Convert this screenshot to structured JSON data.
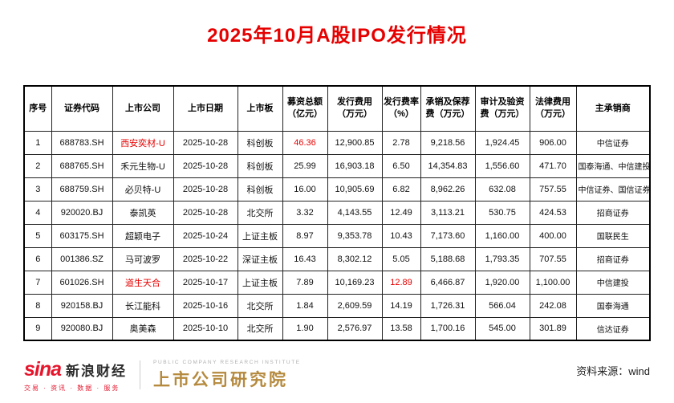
{
  "title": "2025年10月A股IPO发行情况",
  "chart_data": {
    "type": "table",
    "title": "2025年10月A股IPO发行情况",
    "columns": [
      "序号",
      "证券代码",
      "上市公司",
      "上市日期",
      "上市板",
      "募资总额\n（亿元）",
      "发行费用\n（万元）",
      "发行费率\n（%）",
      "承销及保荐\n费（万元）",
      "审计及验资\n费（万元）",
      "法律费用\n（万元）",
      "主承销商"
    ],
    "rows": [
      {
        "cells": [
          "1",
          "688783.SH",
          "西安奕材-U",
          "2025-10-28",
          "科创板",
          "46.36",
          "12,900.85",
          "2.78",
          "9,218.56",
          "1,924.45",
          "906.00",
          "中信证券"
        ],
        "red_cells": [
          2,
          5
        ]
      },
      {
        "cells": [
          "2",
          "688765.SH",
          "禾元生物-U",
          "2025-10-28",
          "科创板",
          "25.99",
          "16,903.18",
          "6.50",
          "14,354.83",
          "1,556.60",
          "471.70",
          "国泰海通、中信建投"
        ],
        "red_cells": []
      },
      {
        "cells": [
          "3",
          "688759.SH",
          "必贝特-U",
          "2025-10-28",
          "科创板",
          "16.00",
          "10,905.69",
          "6.82",
          "8,962.26",
          "632.08",
          "757.55",
          "中信证券、国信证券"
        ],
        "red_cells": []
      },
      {
        "cells": [
          "4",
          "920020.BJ",
          "泰凯英",
          "2025-10-28",
          "北交所",
          "3.32",
          "4,143.55",
          "12.49",
          "3,113.21",
          "530.75",
          "424.53",
          "招商证券"
        ],
        "red_cells": []
      },
      {
        "cells": [
          "5",
          "603175.SH",
          "超颖电子",
          "2025-10-24",
          "上证主板",
          "8.97",
          "9,353.78",
          "10.43",
          "7,173.60",
          "1,160.00",
          "400.00",
          "国联民生"
        ],
        "red_cells": []
      },
      {
        "cells": [
          "6",
          "001386.SZ",
          "马可波罗",
          "2025-10-22",
          "深证主板",
          "16.43",
          "8,302.12",
          "5.05",
          "5,188.68",
          "1,793.35",
          "707.55",
          "招商证券"
        ],
        "red_cells": []
      },
      {
        "cells": [
          "7",
          "601026.SH",
          "道生天合",
          "2025-10-17",
          "上证主板",
          "7.89",
          "10,169.23",
          "12.89",
          "6,466.87",
          "1,920.00",
          "1,100.00",
          "中信建投"
        ],
        "red_cells": [
          2,
          7
        ]
      },
      {
        "cells": [
          "8",
          "920158.BJ",
          "长江能科",
          "2025-10-16",
          "北交所",
          "1.84",
          "2,609.59",
          "14.19",
          "1,726.31",
          "566.04",
          "242.08",
          "国泰海通"
        ],
        "red_cells": []
      },
      {
        "cells": [
          "9",
          "920080.BJ",
          "奥美森",
          "2025-10-10",
          "北交所",
          "1.90",
          "2,576.97",
          "13.58",
          "1,700.16",
          "545.00",
          "301.89",
          "信达证券"
        ],
        "red_cells": []
      }
    ]
  },
  "footer": {
    "sina_logo_text": "sina",
    "sina_brand": "新浪财经",
    "sina_tagline": "交易 · 资讯 · 数据 · 服务",
    "institute_en": "PUBLIC COMPANY RESEARCH INSTITUTE",
    "institute_cn": "上市公司研究院",
    "source_label": "资料来源：wind"
  },
  "colors": {
    "title_red": "#e60000",
    "highlight_red": "#e60000",
    "sina_red": "#e6162d",
    "institute_gold": "#b58a3e"
  }
}
